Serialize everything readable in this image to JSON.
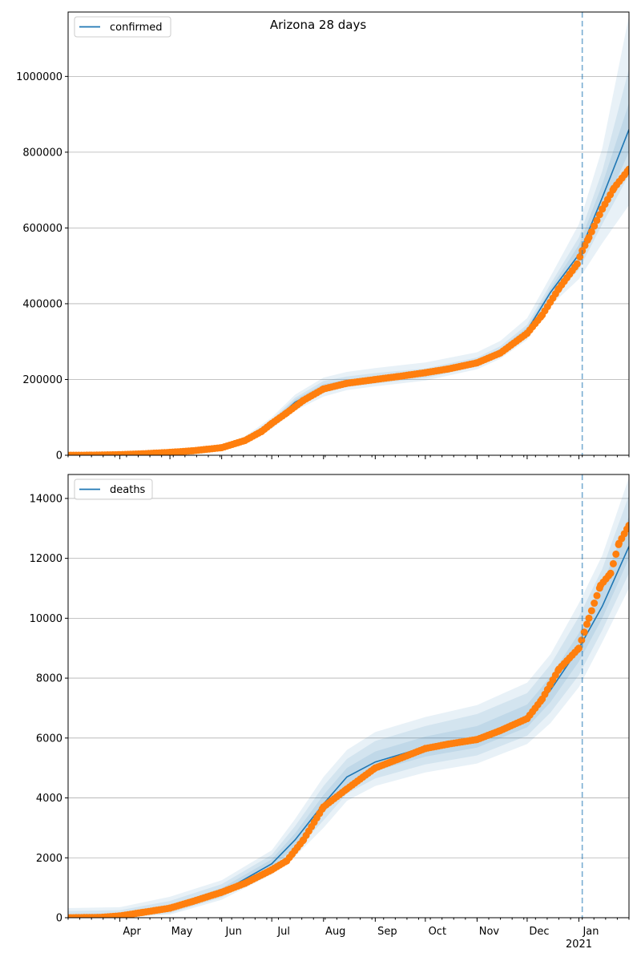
{
  "figure": {
    "suptitle": "Arizona 28 days"
  },
  "colors": {
    "model_line": "#1f77b4",
    "band": "#1f77b4",
    "observed": "#ff7f0e",
    "cutoff_line": "#1f77b4",
    "grid": "#b0b0b0",
    "axes": "#000000"
  },
  "chart_data": [
    {
      "type": "line",
      "legend": "confirmed",
      "legend_position": "top-left",
      "grid": "y",
      "x_range": [
        "2020-03-01",
        "2021-01-31"
      ],
      "ylim": [
        0,
        1170000
      ],
      "y_ticks": [
        0,
        200000,
        400000,
        600000,
        800000,
        1000000
      ],
      "y_tick_labels": [
        "0",
        "200000",
        "400000",
        "600000",
        "800000",
        "1000000"
      ],
      "x_tick_labels": [],
      "cutoff_date": "2021-01-03",
      "model": {
        "x": [
          "2020-03-01",
          "2020-04-01",
          "2020-05-01",
          "2020-06-01",
          "2020-06-15",
          "2020-07-01",
          "2020-07-15",
          "2020-08-01",
          "2020-08-15",
          "2020-09-01",
          "2020-10-01",
          "2020-11-01",
          "2020-11-15",
          "2020-12-01",
          "2020-12-15",
          "2021-01-01",
          "2021-01-15",
          "2021-01-31"
        ],
        "y": [
          0,
          2000,
          7000,
          20000,
          40000,
          85000,
          140000,
          180000,
          193000,
          201000,
          215000,
          245000,
          275000,
          330000,
          430000,
          530000,
          680000,
          860000
        ],
        "lower_outer": [
          0,
          1000,
          5000,
          15000,
          32000,
          70000,
          118000,
          155000,
          172000,
          182000,
          197000,
          227000,
          255000,
          305000,
          395000,
          465000,
          560000,
          660000
        ],
        "upper_outer": [
          0,
          3500,
          10000,
          27000,
          50000,
          100000,
          160000,
          205000,
          220000,
          230000,
          245000,
          272000,
          302000,
          362000,
          472000,
          610000,
          810000,
          1160000
        ],
        "lower_mid": [
          0,
          1300,
          5800,
          17000,
          35000,
          76000,
          127000,
          165000,
          180000,
          189000,
          204000,
          234000,
          263000,
          315000,
          410000,
          490000,
          610000,
          740000
        ],
        "upper_mid": [
          0,
          2800,
          8800,
          24000,
          46000,
          94000,
          152000,
          196000,
          208000,
          217000,
          229000,
          258000,
          288000,
          345000,
          452000,
          575000,
          750000,
          1020000
        ],
        "lower_inner": [
          0,
          1600,
          6400,
          18500,
          37500,
          80500,
          133000,
          172000,
          186000,
          195000,
          209000,
          239000,
          269000,
          322000,
          420000,
          510000,
          645000,
          800000
        ],
        "upper_inner": [
          0,
          2400,
          7800,
          22000,
          43000,
          90000,
          147000,
          188000,
          200000,
          208000,
          221000,
          251000,
          281000,
          338000,
          440000,
          555000,
          715000,
          930000
        ]
      },
      "observed": {
        "x": [
          "2020-03-01",
          "2020-03-15",
          "2020-04-01",
          "2020-04-15",
          "2020-05-01",
          "2020-05-15",
          "2020-06-01",
          "2020-06-15",
          "2020-06-25",
          "2020-07-01",
          "2020-07-10",
          "2020-07-20",
          "2020-08-01",
          "2020-08-15",
          "2020-09-01",
          "2020-09-15",
          "2020-10-01",
          "2020-10-15",
          "2020-11-01",
          "2020-11-15",
          "2020-12-01",
          "2020-12-10",
          "2020-12-20",
          "2020-12-31",
          "2021-01-03",
          "2021-01-07",
          "2021-01-15",
          "2021-01-22",
          "2021-01-31"
        ],
        "y": [
          0,
          200,
          1600,
          4000,
          7600,
          12000,
          20000,
          39000,
          63000,
          84000,
          112000,
          145000,
          175000,
          190000,
          200000,
          208000,
          218000,
          228000,
          244000,
          270000,
          322000,
          370000,
          440000,
          505000,
          540000,
          575000,
          650000,
          705000,
          755000
        ]
      }
    },
    {
      "type": "line",
      "legend": "deaths",
      "legend_position": "top-left",
      "grid": "y",
      "x_range": [
        "2020-03-01",
        "2021-01-31"
      ],
      "ylim": [
        0,
        14800
      ],
      "y_ticks": [
        0,
        2000,
        4000,
        6000,
        8000,
        10000,
        12000,
        14000
      ],
      "y_tick_labels": [
        "0",
        "2000",
        "4000",
        "6000",
        "8000",
        "10000",
        "12000",
        "14000"
      ],
      "x_ticks": [
        "2020-04-01",
        "2020-05-01",
        "2020-06-01",
        "2020-07-01",
        "2020-08-01",
        "2020-09-01",
        "2020-10-01",
        "2020-11-01",
        "2020-12-01",
        "2021-01-01"
      ],
      "x_tick_labels": [
        "Apr",
        "May",
        "Jun",
        "Jul",
        "Aug",
        "Sep",
        "Oct",
        "Nov",
        "Dec",
        "Jan"
      ],
      "x_year_label": "2021",
      "cutoff_date": "2021-01-03",
      "model": {
        "x": [
          "2020-03-01",
          "2020-04-01",
          "2020-05-01",
          "2020-06-01",
          "2020-07-01",
          "2020-07-15",
          "2020-08-01",
          "2020-08-15",
          "2020-09-01",
          "2020-10-01",
          "2020-11-01",
          "2020-12-01",
          "2020-12-15",
          "2021-01-01",
          "2021-01-15",
          "2021-01-31"
        ],
        "y": [
          0,
          30,
          250,
          850,
          1800,
          2600,
          3800,
          4700,
          5200,
          5700,
          6000,
          6700,
          7600,
          9000,
          10400,
          12400
        ],
        "lower_outer": [
          0,
          0,
          100,
          600,
          1450,
          2050,
          3000,
          3900,
          4400,
          4850,
          5150,
          5800,
          6500,
          7700,
          9200,
          11000
        ],
        "upper_outer": [
          320,
          350,
          700,
          1250,
          2250,
          3300,
          4700,
          5600,
          6200,
          6700,
          7100,
          7850,
          8800,
          10500,
          12100,
          14700
        ],
        "lower_mid": [
          0,
          0,
          150,
          680,
          1560,
          2220,
          3250,
          4150,
          4650,
          5120,
          5420,
          6080,
          6850,
          8100,
          9600,
          11500
        ],
        "upper_mid": [
          220,
          250,
          560,
          1120,
          2100,
          3060,
          4400,
          5300,
          5900,
          6400,
          6800,
          7500,
          8450,
          10050,
          11650,
          14100
        ],
        "lower_inner": [
          0,
          10,
          200,
          760,
          1660,
          2380,
          3500,
          4400,
          4900,
          5380,
          5680,
          6360,
          7200,
          8550,
          10000,
          12000
        ],
        "upper_inner": [
          120,
          150,
          420,
          990,
          1950,
          2820,
          4100,
          5000,
          5550,
          6050,
          6400,
          7120,
          8050,
          9500,
          11100,
          13400
        ]
      },
      "observed": {
        "x": [
          "2020-03-01",
          "2020-03-20",
          "2020-04-01",
          "2020-04-15",
          "2020-05-01",
          "2020-05-15",
          "2020-06-01",
          "2020-06-15",
          "2020-07-01",
          "2020-07-10",
          "2020-07-20",
          "2020-08-01",
          "2020-08-15",
          "2020-09-01",
          "2020-09-15",
          "2020-10-01",
          "2020-10-15",
          "2020-11-01",
          "2020-11-15",
          "2020-12-01",
          "2020-12-10",
          "2020-12-20",
          "2021-01-01",
          "2021-01-07",
          "2021-01-14",
          "2021-01-20",
          "2021-01-25",
          "2021-01-31"
        ],
        "y": [
          0,
          10,
          60,
          180,
          320,
          550,
          850,
          1150,
          1600,
          1900,
          2600,
          3700,
          4300,
          5000,
          5300,
          5650,
          5800,
          5950,
          6250,
          6650,
          7300,
          8300,
          9000,
          10000,
          11100,
          11500,
          12500,
          13100
        ]
      }
    }
  ]
}
